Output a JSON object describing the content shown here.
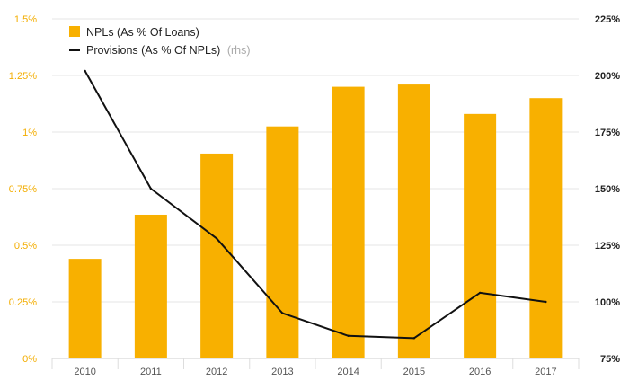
{
  "chart_data": {
    "type": "bar",
    "categories": [
      "2010",
      "2011",
      "2012",
      "2013",
      "2014",
      "2015",
      "2016",
      "2017"
    ],
    "series": [
      {
        "name": "NPLs (As % Of Loans)",
        "type": "bar",
        "axis": "left",
        "color": "#f8b000",
        "values": [
          0.44,
          0.635,
          0.905,
          1.025,
          1.2,
          1.21,
          1.08,
          1.15
        ]
      },
      {
        "name": "Provisions (As % Of NPLs)",
        "type": "line",
        "axis": "right",
        "color": "#111111",
        "values": [
          202,
          150,
          128,
          95,
          85,
          84,
          104,
          100
        ]
      }
    ],
    "legend_suffix": "(rhs)",
    "left_axis": {
      "ylim": [
        0,
        1.5
      ],
      "ticks": [
        "0%",
        "0.25%",
        "0.5%",
        "0.75%",
        "1%",
        "1.25%",
        "1.5%"
      ]
    },
    "right_axis": {
      "ylim": [
        75,
        225
      ],
      "ticks": [
        "75%",
        "100%",
        "125%",
        "150%",
        "175%",
        "200%",
        "225%"
      ]
    },
    "grid": true,
    "legend_position": "top-left",
    "title": "",
    "xlabel": "",
    "ylabel": ""
  }
}
